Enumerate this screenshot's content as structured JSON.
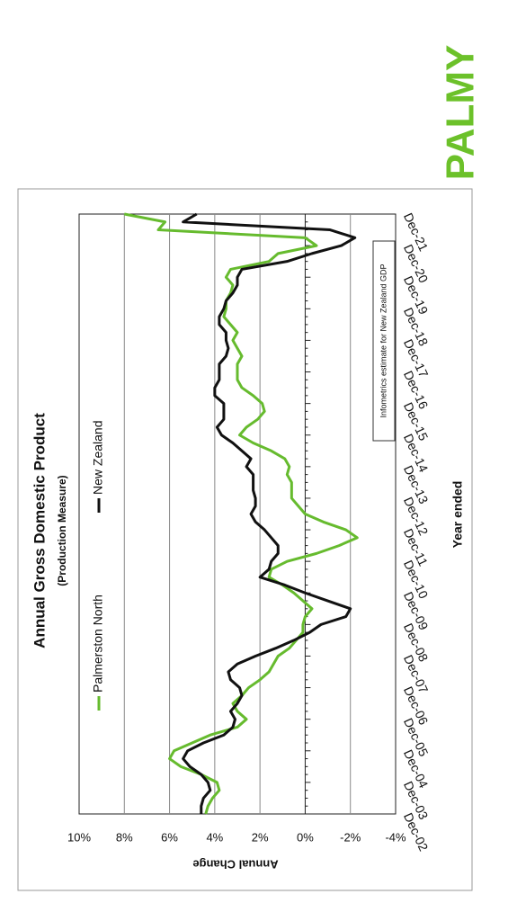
{
  "logo": "PALMY",
  "chart_data": {
    "type": "line",
    "title": "Annual Gross Domestic Product",
    "subtitle": "(Production Measure)",
    "x_label": "Year ended",
    "y_label": "Annual Change",
    "annotation": "Infometrics estimate for New Zealand GDP",
    "categories": [
      "Dec-02",
      null,
      null,
      null,
      "Dec-03",
      null,
      null,
      null,
      "Dec-04",
      null,
      null,
      null,
      "Dec-05",
      null,
      null,
      null,
      "Dec-06",
      null,
      null,
      null,
      "Dec-07",
      null,
      null,
      null,
      "Dec-08",
      null,
      null,
      null,
      "Dec-09",
      null,
      null,
      null,
      "Dec-10",
      null,
      null,
      null,
      "Dec-11",
      null,
      null,
      null,
      "Dec-12",
      null,
      null,
      null,
      "Dec-13",
      null,
      null,
      null,
      "Dec-14",
      null,
      null,
      null,
      "Dec-15",
      null,
      null,
      null,
      "Dec-16",
      null,
      null,
      null,
      "Dec-17",
      null,
      null,
      null,
      "Dec-18",
      null,
      null,
      null,
      "Dec-19",
      null,
      null,
      null,
      "Dec-20",
      null,
      null,
      null,
      "Dec-21"
    ],
    "series": [
      {
        "name": "Palmerston North",
        "color": "#66bb2e",
        "values": [
          4.4,
          4.3,
          4.1,
          3.8,
          3.9,
          4.6,
          5.5,
          6.0,
          5.8,
          5.0,
          4.2,
          3.0,
          2.6,
          3.0,
          3.2,
          2.8,
          2.5,
          2.0,
          1.6,
          1.4,
          1.2,
          0.7,
          0.4,
          0.1,
          0.1,
          0.0,
          -0.3,
          0.1,
          0.5,
          1.0,
          1.6,
          1.5,
          0.8,
          -0.5,
          -1.5,
          -2.3,
          -1.8,
          -0.8,
          0.0,
          0.3,
          0.6,
          0.6,
          0.6,
          0.8,
          0.7,
          0.9,
          1.5,
          2.3,
          2.9,
          2.6,
          2.1,
          1.8,
          1.9,
          2.3,
          2.8,
          3.0,
          3.0,
          3.0,
          2.8,
          3.0,
          3.2,
          3.0,
          3.3,
          3.6,
          3.5,
          3.5,
          3.3,
          3.2,
          3.5,
          3.3,
          1.6,
          1.2,
          -0.5,
          0.0,
          6.5,
          6.2,
          8.0
        ]
      },
      {
        "name": "New Zealand",
        "color": "#111111",
        "values": [
          4.6,
          4.6,
          4.5,
          4.2,
          4.3,
          4.6,
          5.1,
          5.4,
          5.2,
          4.5,
          3.6,
          3.2,
          3.1,
          3.3,
          3.0,
          2.8,
          2.9,
          3.3,
          3.4,
          3.0,
          2.2,
          1.3,
          0.5,
          -0.2,
          -0.7,
          -1.8,
          -2.0,
          -1.0,
          0.0,
          0.9,
          2.0,
          1.6,
          1.5,
          1.2,
          1.2,
          1.5,
          1.8,
          2.2,
          2.4,
          2.2,
          2.2,
          2.3,
          2.3,
          2.3,
          2.6,
          2.4,
          2.8,
          3.2,
          3.7,
          3.9,
          3.6,
          3.6,
          3.6,
          4.0,
          4.0,
          3.8,
          3.8,
          3.8,
          3.5,
          3.4,
          3.5,
          3.5,
          3.8,
          3.8,
          3.6,
          3.5,
          3.2,
          3.0,
          3.0,
          2.8,
          0.8,
          -0.3,
          -1.6,
          -2.2,
          -1.1,
          5.4,
          4.8
        ]
      }
    ],
    "ylim": [
      -4,
      10
    ],
    "yticks": [
      {
        "value": -4,
        "label": "-4%"
      },
      {
        "value": -2,
        "label": "-2%"
      },
      {
        "value": 0,
        "label": "0%"
      },
      {
        "value": 2,
        "label": "2%"
      },
      {
        "value": 4,
        "label": "4%"
      },
      {
        "value": 6,
        "label": "6%"
      },
      {
        "value": 8,
        "label": "8%"
      },
      {
        "value": 10,
        "label": "10%"
      }
    ],
    "grid": true
  }
}
